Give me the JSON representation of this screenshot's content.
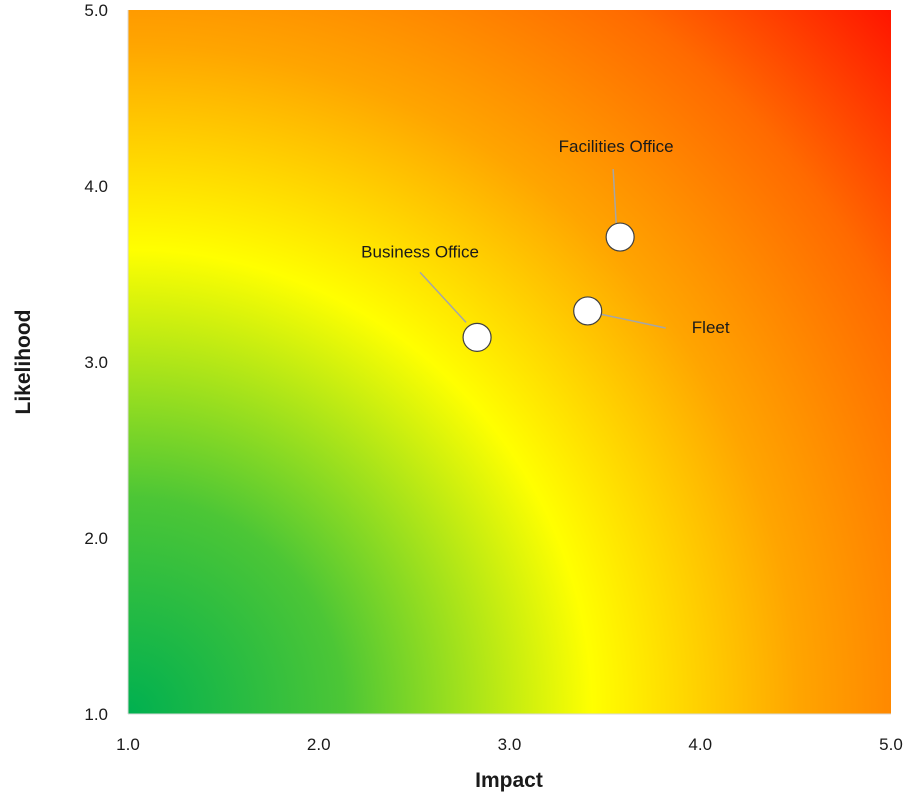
{
  "chart_data": {
    "type": "scatter",
    "title": "",
    "xlabel": "Impact",
    "ylabel": "Likelihood",
    "xlim": [
      1.0,
      5.0
    ],
    "ylim": [
      1.0,
      5.0
    ],
    "x_ticks": [
      "1.0",
      "2.0",
      "3.0",
      "4.0",
      "5.0"
    ],
    "y_ticks": [
      "1.0",
      "2.0",
      "3.0",
      "4.0",
      "5.0"
    ],
    "grid": false,
    "background": "radial gradient heat map from green (low impact, low likelihood) through yellow to red (high impact, high likelihood)",
    "colors": {
      "low": "#00b050",
      "mid": "#ffff00",
      "high_mid": "#ff9900",
      "high": "#ff0000",
      "marker_fill": "#ffffff",
      "marker_stroke": "#404040",
      "leader_line": "#a6a6a6"
    },
    "points": [
      {
        "label": "Business Office",
        "x": 2.83,
        "y": 3.14
      },
      {
        "label": "Facilities Office",
        "x": 3.58,
        "y": 3.71
      },
      {
        "label": "Fleet",
        "x": 3.41,
        "y": 3.29
      }
    ]
  }
}
